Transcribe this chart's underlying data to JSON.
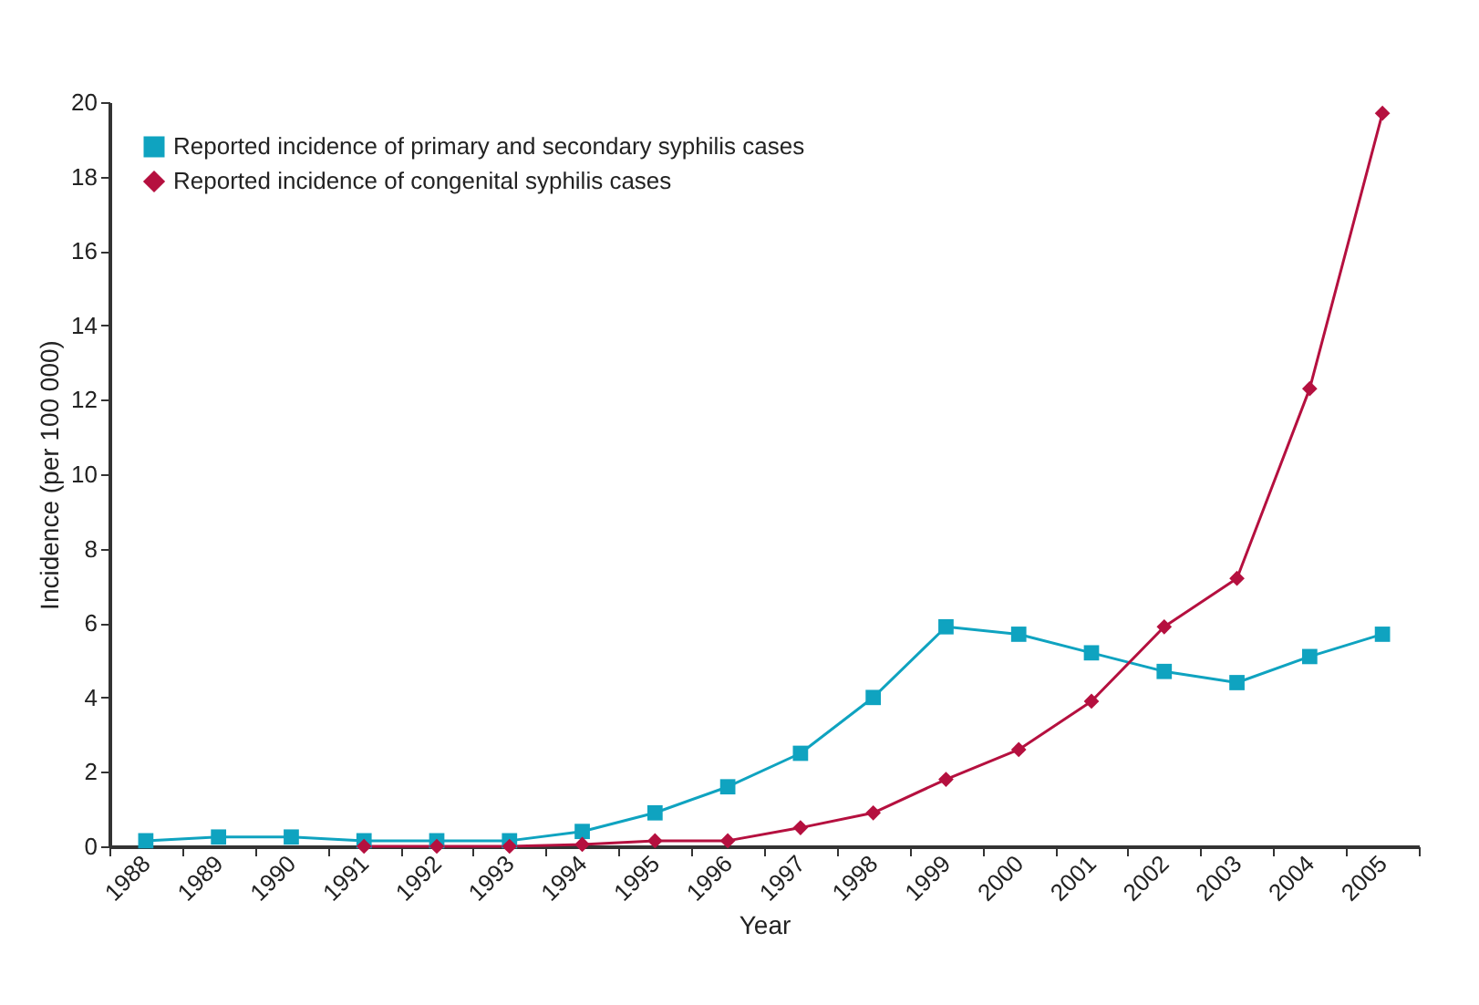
{
  "chart_data": {
    "type": "line",
    "xlabel": "Year",
    "ylabel": "Incidence (per 100 000)",
    "categories": [
      "1988",
      "1989",
      "1990",
      "1991",
      "1992",
      "1993",
      "1994",
      "1995",
      "1996",
      "1997",
      "1998",
      "1999",
      "2000",
      "2001",
      "2002",
      "2003",
      "2004",
      "2005"
    ],
    "series": [
      {
        "name": "Reported incidence of primary and secondary syphilis cases",
        "color": "#0fa3c0",
        "marker": "square",
        "values": [
          0.15,
          0.25,
          0.25,
          0.15,
          0.15,
          0.15,
          0.4,
          0.9,
          1.6,
          2.5,
          4.0,
          5.9,
          5.7,
          5.2,
          4.7,
          4.4,
          5.1,
          5.7
        ]
      },
      {
        "name": "Reported incidence of congenital syphilis cases",
        "color": "#b5103f",
        "marker": "diamond",
        "values": [
          null,
          null,
          null,
          0,
          0,
          0,
          0.05,
          0.15,
          0.15,
          0.5,
          0.9,
          1.8,
          2.6,
          3.9,
          5.9,
          7.2,
          12.3,
          19.7
        ]
      }
    ],
    "ylim": [
      0,
      20
    ],
    "yticks": [
      0,
      2,
      4,
      6,
      8,
      10,
      12,
      14,
      16,
      18,
      20
    ],
    "grid": false,
    "legend": "top left"
  }
}
